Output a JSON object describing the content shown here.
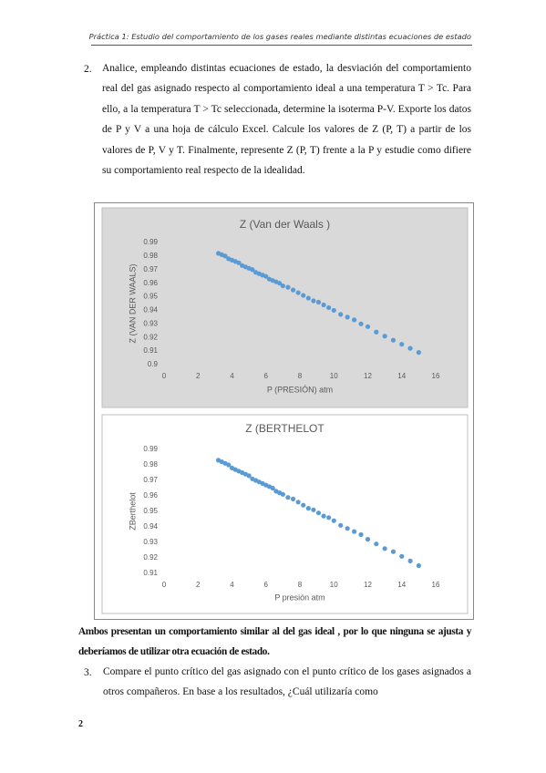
{
  "header": {
    "title": "Práctica 1: Estudio del comportamiento de los gases reales mediante distintas ecuaciones de estado"
  },
  "item_2": {
    "number": "2.",
    "text": "Analice, empleando distintas ecuaciones de estado, la desviación del comportamiento real del gas asignado respecto al comportamiento ideal a una temperatura T > Tc. Para ello, a la temperatura T > Tc seleccionada, determine la isoterma P-V. Exporte los datos de P y V a una hoja de cálculo Excel. Calcule los valores de Z (P, T) a partir de los valores de P, V y T. Finalmente, represente Z (P, T) frente a la P y estudie como difiere su comportamiento real respecto de la idealidad."
  },
  "chart_data": [
    {
      "type": "scatter",
      "title": "Z (Van der Waals )",
      "x_label": "P (PRESIÓN) atm",
      "y_label": "Z (VAN DER WAALS)",
      "color": "#5b9bd5",
      "background": "#d9d9d9",
      "x": [
        3.2,
        3.4,
        3.6,
        3.8,
        4.0,
        4.2,
        4.4,
        4.6,
        4.8,
        5.0,
        5.2,
        5.4,
        5.6,
        5.8,
        6.0,
        6.2,
        6.4,
        6.6,
        6.8,
        7.0,
        7.3,
        7.6,
        7.9,
        8.2,
        8.5,
        8.8,
        9.1,
        9.4,
        9.7,
        10.0,
        10.4,
        10.8,
        11.2,
        11.6,
        12.0,
        12.5,
        13.0,
        13.5,
        14.0,
        14.5,
        15.0
      ],
      "values": [
        0.982,
        0.981,
        0.98,
        0.978,
        0.977,
        0.976,
        0.975,
        0.973,
        0.972,
        0.971,
        0.97,
        0.968,
        0.967,
        0.966,
        0.965,
        0.963,
        0.962,
        0.961,
        0.96,
        0.958,
        0.957,
        0.955,
        0.953,
        0.951,
        0.949,
        0.947,
        0.946,
        0.944,
        0.942,
        0.94,
        0.937,
        0.935,
        0.933,
        0.93,
        0.928,
        0.924,
        0.921,
        0.918,
        0.915,
        0.912,
        0.909
      ],
      "xlim": [
        0,
        16
      ],
      "xticks": [
        0,
        2,
        4,
        6,
        8,
        10,
        12,
        14,
        16
      ],
      "ylim": [
        0.9,
        0.99
      ],
      "yticks": [
        0.9,
        0.91,
        0.92,
        0.93,
        0.94,
        0.95,
        0.96,
        0.97,
        0.98,
        0.99
      ]
    },
    {
      "type": "scatter",
      "title": "Z (BERTHELOT",
      "x_label": "P presión atm",
      "y_label": "ZBerthelot",
      "color": "#5b9bd5",
      "background": "#ffffff",
      "x": [
        3.2,
        3.4,
        3.6,
        3.8,
        4.0,
        4.2,
        4.4,
        4.6,
        4.8,
        5.0,
        5.2,
        5.4,
        5.6,
        5.8,
        6.0,
        6.2,
        6.4,
        6.6,
        6.8,
        7.0,
        7.3,
        7.6,
        7.9,
        8.2,
        8.5,
        8.8,
        9.1,
        9.4,
        9.7,
        10.0,
        10.4,
        10.8,
        11.2,
        11.6,
        12.0,
        12.5,
        13.0,
        13.5,
        14.0,
        14.5,
        15.0
      ],
      "values": [
        0.983,
        0.982,
        0.981,
        0.98,
        0.978,
        0.977,
        0.976,
        0.975,
        0.974,
        0.973,
        0.971,
        0.97,
        0.969,
        0.968,
        0.967,
        0.966,
        0.965,
        0.963,
        0.962,
        0.961,
        0.959,
        0.958,
        0.956,
        0.954,
        0.952,
        0.951,
        0.949,
        0.947,
        0.946,
        0.944,
        0.941,
        0.939,
        0.937,
        0.935,
        0.932,
        0.929,
        0.926,
        0.924,
        0.921,
        0.918,
        0.915
      ],
      "xlim": [
        0,
        16
      ],
      "xticks": [
        0,
        2,
        4,
        6,
        8,
        10,
        12,
        14,
        16
      ],
      "ylim": [
        0.91,
        0.99
      ],
      "yticks": [
        0.91,
        0.92,
        0.93,
        0.94,
        0.95,
        0.96,
        0.97,
        0.98,
        0.99
      ]
    }
  ],
  "conclusion": {
    "text": "Ambos presentan un comportamiento similar al del gas ideal , por lo que ninguna se ajusta y deberíamos de utilizar otra ecuación de estado."
  },
  "item_3": {
    "number": "3.",
    "text": "Compare el punto crítico del gas asignado con el punto crítico de los gases asignados a otros compañeros. En base a los resultados, ¿Cuál utilizaría como"
  },
  "footer": {
    "page_number": "2"
  }
}
